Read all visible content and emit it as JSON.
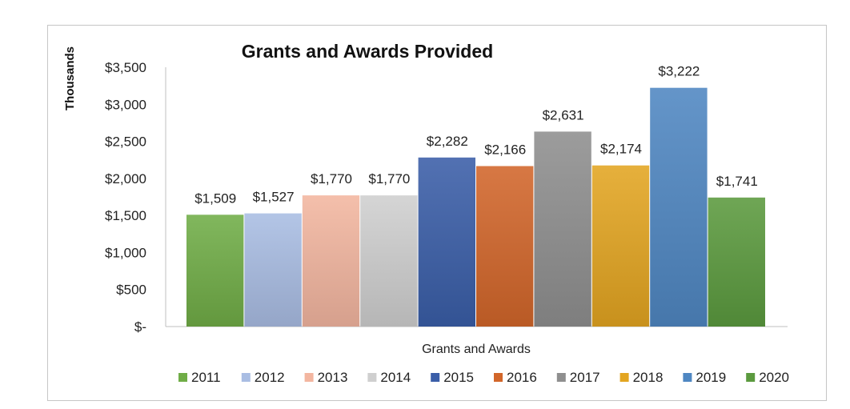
{
  "chart_data": {
    "type": "bar",
    "title": "Grants and Awards Provided",
    "ylabel": "Thousands",
    "xlabel": "Grants and Awards",
    "ylim": [
      0,
      3500
    ],
    "yticks": [
      {
        "value": 0,
        "label": "$-"
      },
      {
        "value": 500,
        "label": "$500"
      },
      {
        "value": 1000,
        "label": "$1,000"
      },
      {
        "value": 1500,
        "label": "$1,500"
      },
      {
        "value": 2000,
        "label": "$2,000"
      },
      {
        "value": 2500,
        "label": "$2,500"
      },
      {
        "value": 3000,
        "label": "$3,000"
      },
      {
        "value": 3500,
        "label": "$3,500"
      }
    ],
    "legend_position": "bottom",
    "series": [
      {
        "name": "2011",
        "value": 1509,
        "label": "$1,509",
        "color": "#70ad47"
      },
      {
        "name": "2012",
        "value": 1527,
        "label": "$1,527",
        "color": "#a9bde3"
      },
      {
        "name": "2013",
        "value": 1770,
        "label": "$1,770",
        "color": "#f3b6a0"
      },
      {
        "name": "2014",
        "value": 1770,
        "label": "$1,770",
        "color": "#cfcfcf"
      },
      {
        "name": "2015",
        "value": 2282,
        "label": "$2,282",
        "color": "#3a5ea8"
      },
      {
        "name": "2016",
        "value": 2166,
        "label": "$2,166",
        "color": "#d2662a"
      },
      {
        "name": "2017",
        "value": 2631,
        "label": "$2,631",
        "color": "#8f8f8f"
      },
      {
        "name": "2018",
        "value": 2174,
        "label": "$2,174",
        "color": "#e3a521"
      },
      {
        "name": "2019",
        "value": 3222,
        "label": "$3,222",
        "color": "#4f87c2"
      },
      {
        "name": "2020",
        "value": 1741,
        "label": "$1,741",
        "color": "#5b9a3e"
      }
    ]
  }
}
